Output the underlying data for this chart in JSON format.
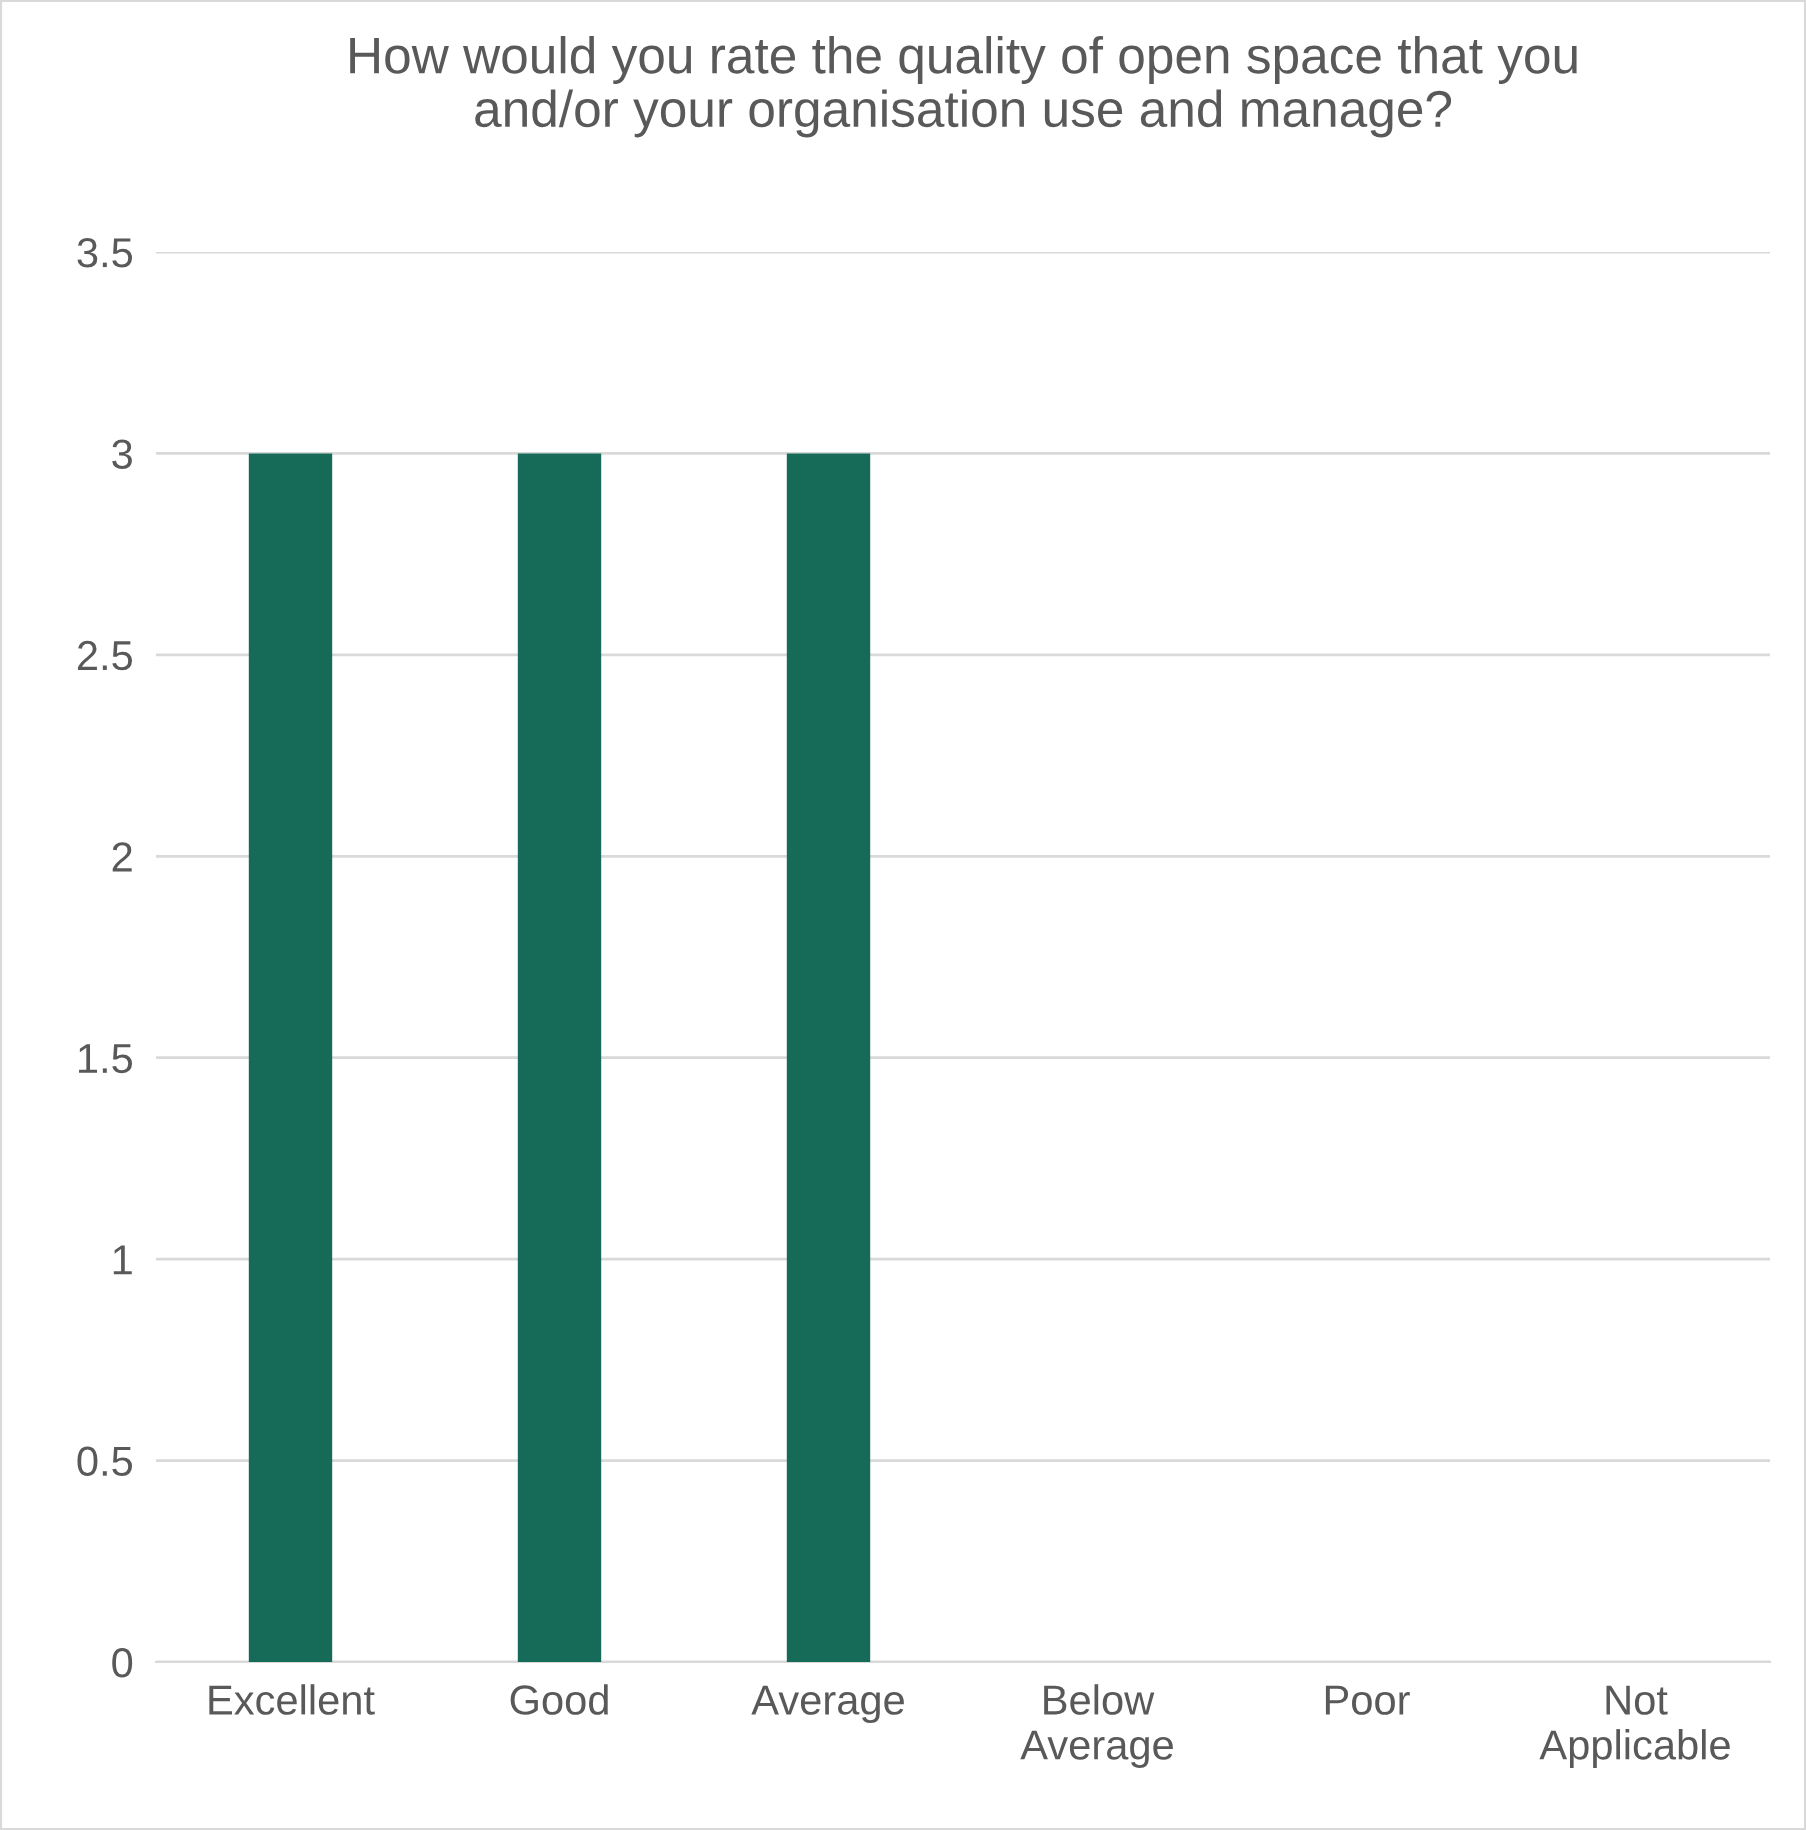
{
  "chart_data": {
    "type": "bar",
    "title": "How would you rate the quality of open space that you and/or your organisation use and manage?",
    "categories": [
      "Excellent",
      "Good",
      "Average",
      "Below Average",
      "Poor",
      "Not Applicable"
    ],
    "values": [
      3,
      3,
      3,
      0,
      0,
      0
    ],
    "color": "#156b57",
    "ylim": [
      0,
      3.5
    ],
    "yticks": [
      0,
      0.5,
      1,
      1.5,
      2,
      2.5,
      3,
      3.5
    ],
    "grid": "y",
    "legend": false
  }
}
